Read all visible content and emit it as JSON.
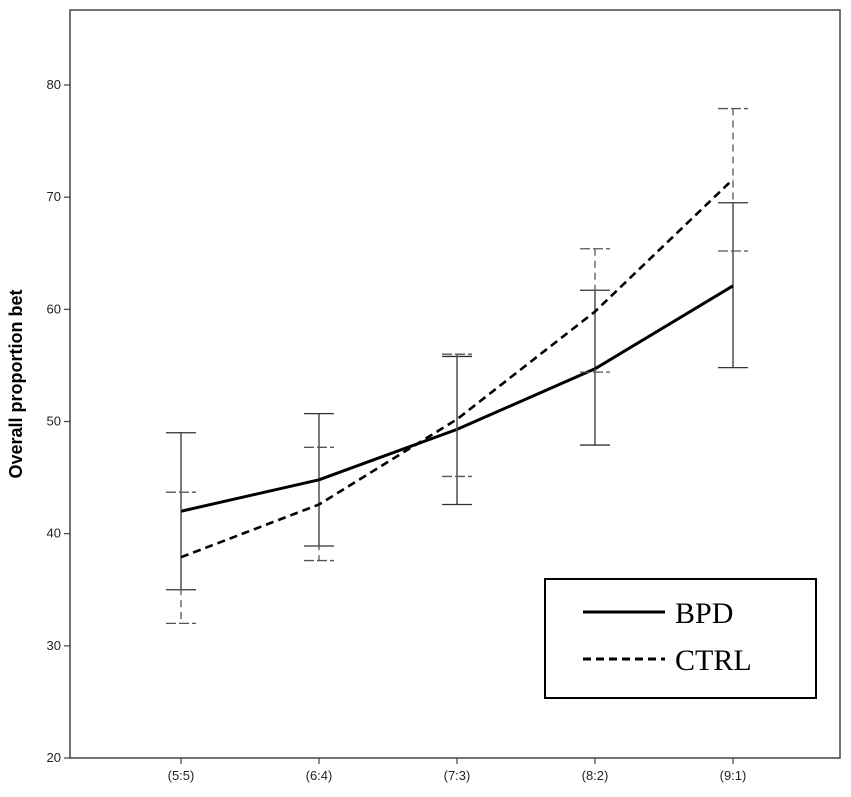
{
  "chart_data": {
    "type": "line",
    "title": "",
    "xlabel": "",
    "ylabel": "Overall proportion bet",
    "categories": [
      "(5:5)",
      "(6:4)",
      "(7:3)",
      "(8:2)",
      "(9:1)"
    ],
    "ylim": [
      20,
      86
    ],
    "yticks": [
      20,
      30,
      40,
      50,
      60,
      70,
      80
    ],
    "grid": false,
    "legend_position": "bottom-right",
    "series": [
      {
        "name": "BPD",
        "line_style": "solid",
        "values": [
          42.0,
          44.8,
          49.3,
          54.7,
          62.1
        ],
        "error_low": [
          35.0,
          38.9,
          42.6,
          47.9,
          54.8
        ],
        "error_high": [
          49.0,
          50.7,
          55.8,
          61.7,
          69.5
        ]
      },
      {
        "name": "CTRL",
        "line_style": "dashed",
        "values": [
          37.9,
          42.6,
          50.2,
          59.8,
          71.6
        ],
        "error_low": [
          32.0,
          37.6,
          45.1,
          54.4,
          65.2
        ],
        "error_high": [
          43.7,
          47.7,
          56.0,
          65.4,
          77.9
        ]
      }
    ]
  }
}
